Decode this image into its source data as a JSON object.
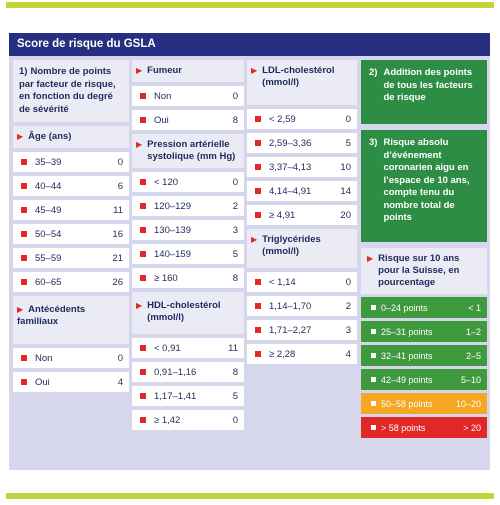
{
  "title": "Score de risque du GSLA",
  "colors": {
    "navy": "#262f80",
    "lime": "#c5d43a",
    "red": "#e22826",
    "green": "#2e8d45",
    "orange": "#f5a623",
    "panel": "#d6d6ec"
  },
  "step1": {
    "num": "1)",
    "text": "Nombre de points par facteur de risque, en fonction du degré de sévérité"
  },
  "age": {
    "title": "Âge (ans)",
    "rows": [
      {
        "label": "35–39",
        "points": "0"
      },
      {
        "label": "40–44",
        "points": "6"
      },
      {
        "label": "45–49",
        "points": "11"
      },
      {
        "label": "50–54",
        "points": "16"
      },
      {
        "label": "55–59",
        "points": "21"
      },
      {
        "label": "60–65",
        "points": "26"
      }
    ]
  },
  "family": {
    "title": "Antécédents familiaux",
    "rows": [
      {
        "label": "Non",
        "points": "0"
      },
      {
        "label": "Oui",
        "points": "4"
      }
    ]
  },
  "smoker": {
    "title": "Fumeur",
    "rows": [
      {
        "label": "Non",
        "points": "0"
      },
      {
        "label": "Oui",
        "points": "8"
      }
    ]
  },
  "bp": {
    "title": "Pression artérielle systolique (mm Hg)",
    "rows": [
      {
        "label": "< 120",
        "points": "0"
      },
      {
        "label": "120–129",
        "points": "2"
      },
      {
        "label": "130–139",
        "points": "3"
      },
      {
        "label": "140–159",
        "points": "5"
      },
      {
        "label": "≥ 160",
        "points": "8"
      }
    ]
  },
  "hdl": {
    "title": "HDL-cholestérol (mmol/l)",
    "rows": [
      {
        "label": "< 0,91",
        "points": "11"
      },
      {
        "label": "0,91–1,16",
        "points": "8"
      },
      {
        "label": "1,17–1,41",
        "points": "5"
      },
      {
        "label": "≥ 1,42",
        "points": "0"
      }
    ]
  },
  "ldl": {
    "title": "LDL-cholestérol (mmol/l)",
    "rows": [
      {
        "label": "< 2,59",
        "points": "0"
      },
      {
        "label": "2,59–3,36",
        "points": "5"
      },
      {
        "label": "3,37–4,13",
        "points": "10"
      },
      {
        "label": "4,14–4,91",
        "points": "14"
      },
      {
        "label": "≥ 4,91",
        "points": "20"
      }
    ]
  },
  "tg": {
    "title": "Triglycérides (mmol/l)",
    "rows": [
      {
        "label": "< 1,14",
        "points": "0"
      },
      {
        "label": "1,14–1,70",
        "points": "2"
      },
      {
        "label": "1,71–2,27",
        "points": "3"
      },
      {
        "label": "≥ 2,28",
        "points": "4"
      }
    ]
  },
  "step2": {
    "num": "2)",
    "text": "Addition des points de tous les facteurs de risque"
  },
  "step3": {
    "num": "3)",
    "text": "Risque absolu d’événement coronarien aigu en l’espace de 10 ans, compte tenu du nombre total de points"
  },
  "risk": {
    "title": "Risque sur 10 ans pour la Suisse, en pourcentage",
    "rows": [
      {
        "label": "0–24 points",
        "value": "< 1",
        "color": "#3f9a3e"
      },
      {
        "label": "25–31 points",
        "value": "1–2",
        "color": "#3f9a3e"
      },
      {
        "label": "32–41 points",
        "value": "2–5",
        "color": "#3f9a3e"
      },
      {
        "label": "42–49 points",
        "value": "5–10",
        "color": "#3f9a3e"
      },
      {
        "label": "50–58 points",
        "value": "10–20",
        "color": "#f5a623"
      },
      {
        "label": "> 58 points",
        "value": "> 20",
        "color": "#e22826"
      }
    ]
  }
}
